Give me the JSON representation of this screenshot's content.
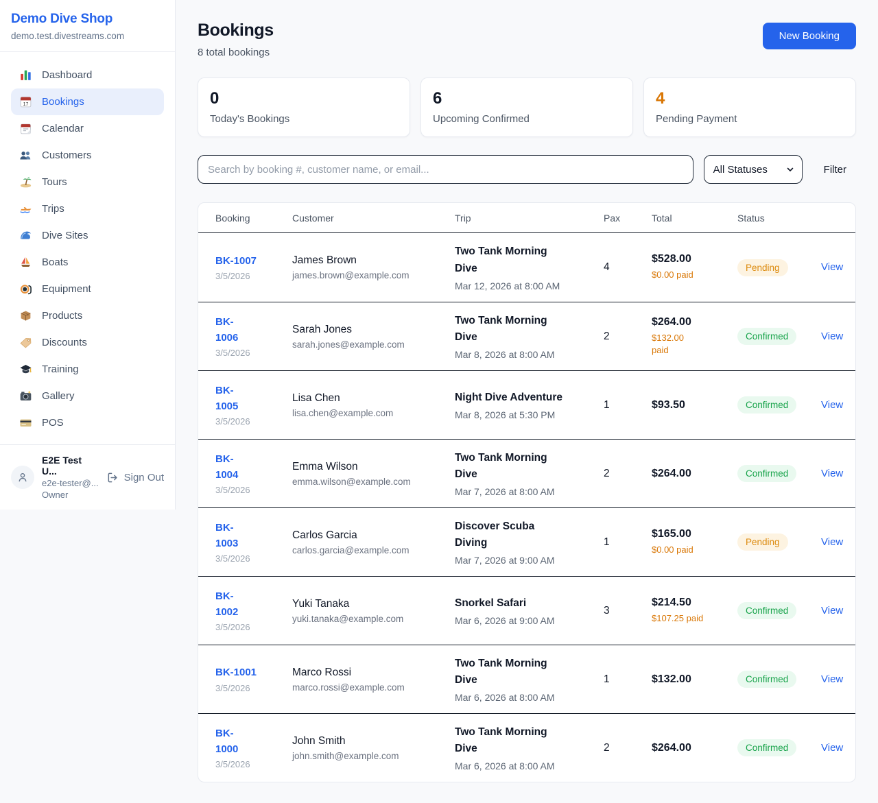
{
  "sidebar": {
    "shop_name": "Demo Dive Shop",
    "shop_domain": "demo.test.divestreams.com",
    "items": [
      {
        "label": "Dashboard",
        "icon": "dashboard-icon",
        "active": false
      },
      {
        "label": "Bookings",
        "icon": "bookings-icon",
        "active": true
      },
      {
        "label": "Calendar",
        "icon": "calendar-icon",
        "active": false
      },
      {
        "label": "Customers",
        "icon": "customers-icon",
        "active": false
      },
      {
        "label": "Tours",
        "icon": "tours-icon",
        "active": false
      },
      {
        "label": "Trips",
        "icon": "trips-icon",
        "active": false
      },
      {
        "label": "Dive Sites",
        "icon": "dive-sites-icon",
        "active": false
      },
      {
        "label": "Boats",
        "icon": "boats-icon",
        "active": false
      },
      {
        "label": "Equipment",
        "icon": "equipment-icon",
        "active": false
      },
      {
        "label": "Products",
        "icon": "products-icon",
        "active": false
      },
      {
        "label": "Discounts",
        "icon": "discounts-icon",
        "active": false
      },
      {
        "label": "Training",
        "icon": "training-icon",
        "active": false
      },
      {
        "label": "Gallery",
        "icon": "gallery-icon",
        "active": false
      },
      {
        "label": "POS",
        "icon": "pos-icon",
        "active": false
      }
    ],
    "user": {
      "name": "E2E Test U...",
      "email": "e2e-tester@...",
      "role": "Owner",
      "sign_out_label": "Sign Out"
    }
  },
  "header": {
    "title": "Bookings",
    "subtitle": "8 total bookings",
    "new_booking_label": "New Booking"
  },
  "stats": [
    {
      "value": "0",
      "label": "Today's Bookings",
      "accent": false
    },
    {
      "value": "6",
      "label": "Upcoming Confirmed",
      "accent": false
    },
    {
      "value": "4",
      "label": "Pending Payment",
      "accent": true
    }
  ],
  "filters": {
    "search_placeholder": "Search by booking #, customer name, or email...",
    "status_selected": "All Statuses",
    "filter_label": "Filter"
  },
  "table": {
    "columns": [
      "Booking",
      "Customer",
      "Trip",
      "Pax",
      "Total",
      "Status"
    ],
    "view_label": "View",
    "rows": [
      {
        "id": "BK-1007",
        "date": "3/5/2026",
        "customer": "James Brown",
        "email": "james.brown@example.com",
        "trip": "Two Tank Morning\nDive",
        "trip_date": "Mar 12, 2026 at 8:00 AM",
        "pax": "4",
        "total": "$528.00",
        "paid": "$0.00 paid",
        "status": "Pending"
      },
      {
        "id": "BK-\n1006",
        "date": "3/5/2026",
        "customer": "Sarah Jones",
        "email": "sarah.jones@example.com",
        "trip": "Two Tank Morning\nDive",
        "trip_date": "Mar 8, 2026 at 8:00 AM",
        "pax": "2",
        "total": "$264.00",
        "paid": "$132.00\npaid",
        "status": "Confirmed"
      },
      {
        "id": "BK-\n1005",
        "date": "3/5/2026",
        "customer": "Lisa Chen",
        "email": "lisa.chen@example.com",
        "trip": "Night Dive Adventure",
        "trip_date": "Mar 8, 2026 at 5:30 PM",
        "pax": "1",
        "total": "$93.50",
        "paid": null,
        "status": "Confirmed"
      },
      {
        "id": "BK-\n1004",
        "date": "3/5/2026",
        "customer": "Emma Wilson",
        "email": "emma.wilson@example.com",
        "trip": "Two Tank Morning\nDive",
        "trip_date": "Mar 7, 2026 at 8:00 AM",
        "pax": "2",
        "total": "$264.00",
        "paid": null,
        "status": "Confirmed"
      },
      {
        "id": "BK-\n1003",
        "date": "3/5/2026",
        "customer": "Carlos Garcia",
        "email": "carlos.garcia@example.com",
        "trip": "Discover Scuba\nDiving",
        "trip_date": "Mar 7, 2026 at 9:00 AM",
        "pax": "1",
        "total": "$165.00",
        "paid": "$0.00 paid",
        "status": "Pending"
      },
      {
        "id": "BK-\n1002",
        "date": "3/5/2026",
        "customer": "Yuki Tanaka",
        "email": "yuki.tanaka@example.com",
        "trip": "Snorkel Safari",
        "trip_date": "Mar 6, 2026 at 9:00 AM",
        "pax": "3",
        "total": "$214.50",
        "paid": "$107.25 paid",
        "status": "Confirmed"
      },
      {
        "id": "BK-1001",
        "date": "3/5/2026",
        "customer": "Marco Rossi",
        "email": "marco.rossi@example.com",
        "trip": "Two Tank Morning\nDive",
        "trip_date": "Mar 6, 2026 at 8:00 AM",
        "pax": "1",
        "total": "$132.00",
        "paid": null,
        "status": "Confirmed"
      },
      {
        "id": "BK-\n1000",
        "date": "3/5/2026",
        "customer": "John Smith",
        "email": "john.smith@example.com",
        "trip": "Two Tank Morning\nDive",
        "trip_date": "Mar 6, 2026 at 8:00 AM",
        "pax": "2",
        "total": "$264.00",
        "paid": null,
        "status": "Confirmed"
      }
    ]
  },
  "colors": {
    "primary": "#2563eb",
    "pending_text": "#dc8a0d",
    "pending_bg": "#fdf3e1",
    "confirmed_text": "#17a34a",
    "confirmed_bg": "#e9f9ef",
    "accent_number": "#d97706"
  }
}
